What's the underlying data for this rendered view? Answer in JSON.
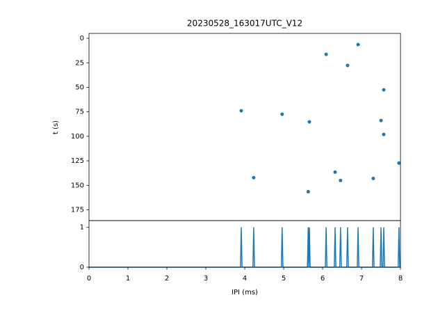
{
  "chart_data": [
    {
      "type": "scatter",
      "title": "20230528_163017UTC_V12",
      "y_label": "t (s)",
      "color": "#1f77b4",
      "x": [
        6.91,
        6.09,
        6.64,
        7.57,
        3.91,
        4.96,
        5.66,
        7.5,
        7.57,
        7.96,
        6.32,
        4.23,
        6.46,
        7.3,
        5.63
      ],
      "values": [
        6.4,
        16.4,
        27.7,
        52.6,
        74.0,
        77.5,
        85.3,
        83.9,
        98.1,
        127.3,
        136.6,
        142.2,
        145.1,
        143.0,
        156.5
      ],
      "xlim": [
        0,
        8
      ],
      "ylim": [
        186,
        -5
      ],
      "yticks": [
        0,
        25,
        50,
        75,
        100,
        125,
        150,
        175
      ]
    },
    {
      "type": "line",
      "x_label": "IPI (ms)",
      "color": "#1f77b4",
      "x": [
        0,
        3.89,
        3.91,
        3.93,
        4.21,
        4.23,
        4.25,
        4.94,
        4.96,
        4.98,
        5.61,
        5.63,
        5.645,
        5.66,
        5.68,
        6.07,
        6.09,
        6.11,
        6.3,
        6.32,
        6.34,
        6.44,
        6.46,
        6.48,
        6.62,
        6.64,
        6.66,
        6.89,
        6.91,
        6.93,
        7.28,
        7.3,
        7.32,
        7.48,
        7.5,
        7.52,
        7.55,
        7.57,
        7.59,
        7.94,
        7.96,
        7.98,
        8
      ],
      "values": [
        0,
        0,
        1,
        0,
        0,
        1,
        0,
        0,
        1,
        0,
        0,
        1,
        0,
        1,
        0,
        0,
        1,
        0,
        0,
        1,
        0,
        0,
        1,
        0,
        0,
        1,
        0,
        0,
        1,
        0,
        0,
        1,
        0,
        0,
        1,
        0,
        0,
        1,
        0,
        0,
        1,
        0,
        0
      ],
      "xlim": [
        0,
        8
      ],
      "xticks": [
        0,
        1,
        2,
        3,
        4,
        5,
        6,
        7,
        8
      ],
      "ylim": [
        0,
        1.17
      ],
      "yticks": [
        0,
        1
      ]
    }
  ]
}
